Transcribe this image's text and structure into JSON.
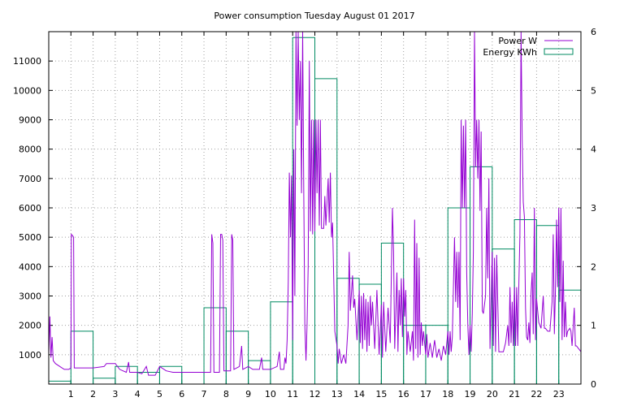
{
  "chart_data": {
    "type": "line",
    "title": "Power consumption Tuesday August 01 2017",
    "xlabel": "",
    "ylabel": "",
    "xlim": [
      0,
      24
    ],
    "ylim": [
      0,
      12000
    ],
    "y2lim": [
      0,
      6
    ],
    "x_ticks": [
      1,
      2,
      3,
      4,
      5,
      6,
      7,
      8,
      9,
      10,
      11,
      12,
      13,
      14,
      15,
      16,
      17,
      18,
      19,
      20,
      21,
      22,
      23
    ],
    "y_ticks": [
      1000,
      2000,
      3000,
      4000,
      5000,
      6000,
      7000,
      8000,
      9000,
      10000,
      11000
    ],
    "y2_ticks": [
      0,
      1,
      2,
      3,
      4,
      5,
      6
    ],
    "grid": true,
    "legend": "top-right",
    "series": [
      {
        "name": "Power W",
        "axis": "y",
        "style": "line",
        "color": "#9400d3",
        "points": [
          [
            0.0,
            1000
          ],
          [
            0.05,
            2300
          ],
          [
            0.1,
            900
          ],
          [
            0.15,
            1600
          ],
          [
            0.2,
            800
          ],
          [
            0.3,
            700
          ],
          [
            0.5,
            600
          ],
          [
            0.7,
            500
          ],
          [
            0.9,
            500
          ],
          [
            1.0,
            550
          ],
          [
            1.02,
            5100
          ],
          [
            1.08,
            5050
          ],
          [
            1.12,
            5000
          ],
          [
            1.15,
            550
          ],
          [
            1.5,
            550
          ],
          [
            2.0,
            550
          ],
          [
            2.5,
            600
          ],
          [
            2.6,
            700
          ],
          [
            3.0,
            700
          ],
          [
            3.2,
            500
          ],
          [
            3.5,
            400
          ],
          [
            3.6,
            750
          ],
          [
            3.65,
            400
          ],
          [
            4.0,
            400
          ],
          [
            4.2,
            350
          ],
          [
            4.4,
            600
          ],
          [
            4.5,
            300
          ],
          [
            4.8,
            300
          ],
          [
            5.0,
            600
          ],
          [
            5.3,
            450
          ],
          [
            5.6,
            400
          ],
          [
            6.0,
            400
          ],
          [
            6.5,
            400
          ],
          [
            7.0,
            400
          ],
          [
            7.3,
            400
          ],
          [
            7.35,
            5100
          ],
          [
            7.4,
            4800
          ],
          [
            7.45,
            400
          ],
          [
            7.7,
            400
          ],
          [
            7.75,
            5100
          ],
          [
            7.8,
            5100
          ],
          [
            7.85,
            4900
          ],
          [
            7.9,
            450
          ],
          [
            8.2,
            450
          ],
          [
            8.25,
            5100
          ],
          [
            8.3,
            4900
          ],
          [
            8.35,
            500
          ],
          [
            8.6,
            600
          ],
          [
            8.7,
            1300
          ],
          [
            8.75,
            500
          ],
          [
            9.0,
            600
          ],
          [
            9.2,
            500
          ],
          [
            9.5,
            500
          ],
          [
            9.6,
            900
          ],
          [
            9.65,
            500
          ],
          [
            10.0,
            500
          ],
          [
            10.3,
            600
          ],
          [
            10.4,
            1100
          ],
          [
            10.45,
            500
          ],
          [
            10.6,
            500
          ],
          [
            10.65,
            900
          ],
          [
            10.7,
            700
          ],
          [
            10.75,
            1500
          ],
          [
            10.8,
            3500
          ],
          [
            10.85,
            7200
          ],
          [
            10.9,
            5000
          ],
          [
            10.95,
            7100
          ],
          [
            11.0,
            1500
          ],
          [
            11.05,
            8000
          ],
          [
            11.1,
            3000
          ],
          [
            11.15,
            12000
          ],
          [
            11.2,
            8800
          ],
          [
            11.25,
            12000
          ],
          [
            11.3,
            9000
          ],
          [
            11.35,
            11000
          ],
          [
            11.4,
            6500
          ],
          [
            11.45,
            12000
          ],
          [
            11.5,
            6400
          ],
          [
            11.55,
            2000
          ],
          [
            11.6,
            800
          ],
          [
            11.65,
            2000
          ],
          [
            11.7,
            4000
          ],
          [
            11.75,
            11000
          ],
          [
            11.8,
            5200
          ],
          [
            11.85,
            9000
          ],
          [
            11.9,
            5100
          ],
          [
            11.95,
            9000
          ],
          [
            12.0,
            5200
          ],
          [
            12.05,
            9000
          ],
          [
            12.1,
            6500
          ],
          [
            12.15,
            9000
          ],
          [
            12.2,
            5400
          ],
          [
            12.25,
            9000
          ],
          [
            12.3,
            5300
          ],
          [
            12.4,
            5300
          ],
          [
            12.45,
            6400
          ],
          [
            12.5,
            5400
          ],
          [
            12.6,
            7000
          ],
          [
            12.65,
            5500
          ],
          [
            12.7,
            7200
          ],
          [
            12.75,
            5000
          ],
          [
            12.8,
            5500
          ],
          [
            12.9,
            1800
          ],
          [
            13.0,
            1300
          ],
          [
            13.05,
            700
          ],
          [
            13.1,
            1200
          ],
          [
            13.2,
            700
          ],
          [
            13.3,
            1000
          ],
          [
            13.4,
            700
          ],
          [
            13.5,
            2000
          ],
          [
            13.55,
            4500
          ],
          [
            13.6,
            2500
          ],
          [
            13.7,
            3700
          ],
          [
            13.75,
            2600
          ],
          [
            13.8,
            2900
          ],
          [
            13.9,
            1500
          ],
          [
            14.0,
            3200
          ],
          [
            14.05,
            1400
          ],
          [
            14.1,
            3000
          ],
          [
            14.15,
            1200
          ],
          [
            14.2,
            3100
          ],
          [
            14.25,
            1500
          ],
          [
            14.3,
            2900
          ],
          [
            14.35,
            1100
          ],
          [
            14.4,
            2800
          ],
          [
            14.45,
            1300
          ],
          [
            14.5,
            3000
          ],
          [
            14.55,
            2000
          ],
          [
            14.6,
            2800
          ],
          [
            14.7,
            1200
          ],
          [
            14.8,
            3200
          ],
          [
            14.9,
            1000
          ],
          [
            15.0,
            2700
          ],
          [
            15.05,
            900
          ],
          [
            15.1,
            2800
          ],
          [
            15.2,
            1100
          ],
          [
            15.3,
            2600
          ],
          [
            15.4,
            1400
          ],
          [
            15.5,
            6000
          ],
          [
            15.55,
            4500
          ],
          [
            15.6,
            1200
          ],
          [
            15.7,
            3800
          ],
          [
            15.75,
            1100
          ],
          [
            15.8,
            3200
          ],
          [
            15.85,
            2000
          ],
          [
            15.9,
            3600
          ],
          [
            15.95,
            1600
          ],
          [
            16.0,
            3600
          ],
          [
            16.05,
            2300
          ],
          [
            16.1,
            3200
          ],
          [
            16.15,
            1000
          ],
          [
            16.2,
            1800
          ],
          [
            16.3,
            1100
          ],
          [
            16.4,
            1800
          ],
          [
            16.45,
            800
          ],
          [
            16.5,
            5600
          ],
          [
            16.55,
            1200
          ],
          [
            16.6,
            4800
          ],
          [
            16.65,
            900
          ],
          [
            16.7,
            4300
          ],
          [
            16.75,
            1000
          ],
          [
            16.8,
            2100
          ],
          [
            16.85,
            1300
          ],
          [
            16.9,
            1800
          ],
          [
            17.0,
            1000
          ],
          [
            17.05,
            1700
          ],
          [
            17.1,
            900
          ],
          [
            17.2,
            1400
          ],
          [
            17.3,
            900
          ],
          [
            17.4,
            1500
          ],
          [
            17.5,
            900
          ],
          [
            17.6,
            1200
          ],
          [
            17.7,
            800
          ],
          [
            17.8,
            1300
          ],
          [
            17.9,
            1000
          ],
          [
            18.0,
            1800
          ],
          [
            18.05,
            1000
          ],
          [
            18.1,
            1800
          ],
          [
            18.15,
            1100
          ],
          [
            18.2,
            1600
          ],
          [
            18.3,
            5000
          ],
          [
            18.35,
            2800
          ],
          [
            18.4,
            4500
          ],
          [
            18.45,
            2600
          ],
          [
            18.5,
            4500
          ],
          [
            18.55,
            1500
          ],
          [
            18.6,
            9000
          ],
          [
            18.65,
            6000
          ],
          [
            18.7,
            8800
          ],
          [
            18.75,
            6000
          ],
          [
            18.8,
            9000
          ],
          [
            18.85,
            3800
          ],
          [
            18.9,
            2000
          ],
          [
            18.95,
            1000
          ],
          [
            19.0,
            2000
          ],
          [
            19.05,
            1100
          ],
          [
            19.1,
            2400
          ],
          [
            19.15,
            4500
          ],
          [
            19.2,
            12000
          ],
          [
            19.25,
            7400
          ],
          [
            19.3,
            9000
          ],
          [
            19.35,
            7000
          ],
          [
            19.4,
            9000
          ],
          [
            19.45,
            5900
          ],
          [
            19.5,
            8600
          ],
          [
            19.55,
            2500
          ],
          [
            19.6,
            2400
          ],
          [
            19.7,
            3000
          ],
          [
            19.75,
            6000
          ],
          [
            19.8,
            3600
          ],
          [
            19.85,
            7000
          ],
          [
            19.9,
            1200
          ],
          [
            20.0,
            4500
          ],
          [
            20.05,
            1300
          ],
          [
            20.1,
            4300
          ],
          [
            20.15,
            1100
          ],
          [
            20.2,
            4400
          ],
          [
            20.3,
            1100
          ],
          [
            20.5,
            1100
          ],
          [
            20.6,
            1400
          ],
          [
            20.7,
            2000
          ],
          [
            20.75,
            1300
          ],
          [
            20.8,
            3300
          ],
          [
            20.85,
            1400
          ],
          [
            20.9,
            2800
          ],
          [
            20.95,
            1300
          ],
          [
            21.0,
            3300
          ],
          [
            21.05,
            1300
          ],
          [
            21.1,
            3300
          ],
          [
            21.15,
            1300
          ],
          [
            21.2,
            3400
          ],
          [
            21.25,
            5100
          ],
          [
            21.3,
            12000
          ],
          [
            21.35,
            8300
          ],
          [
            21.4,
            6200
          ],
          [
            21.45,
            5700
          ],
          [
            21.5,
            2600
          ],
          [
            21.55,
            1600
          ],
          [
            21.6,
            1500
          ],
          [
            21.65,
            2100
          ],
          [
            21.7,
            1400
          ],
          [
            21.75,
            3100
          ],
          [
            21.8,
            3800
          ],
          [
            21.85,
            1700
          ],
          [
            21.9,
            6000
          ],
          [
            21.95,
            1500
          ],
          [
            22.0,
            2900
          ],
          [
            22.1,
            2100
          ],
          [
            22.2,
            1900
          ],
          [
            22.3,
            3000
          ],
          [
            22.35,
            1900
          ],
          [
            22.4,
            1900
          ],
          [
            22.5,
            1800
          ],
          [
            22.6,
            1800
          ],
          [
            22.7,
            2800
          ],
          [
            22.75,
            5100
          ],
          [
            22.8,
            1700
          ],
          [
            22.85,
            3200
          ],
          [
            22.9,
            5600
          ],
          [
            22.95,
            3300
          ],
          [
            23.0,
            6000
          ],
          [
            23.05,
            2800
          ],
          [
            23.1,
            6000
          ],
          [
            23.15,
            1500
          ],
          [
            23.2,
            4200
          ],
          [
            23.25,
            1600
          ],
          [
            23.3,
            2800
          ],
          [
            23.35,
            1600
          ],
          [
            23.4,
            1800
          ],
          [
            23.5,
            1900
          ],
          [
            23.55,
            1800
          ],
          [
            23.6,
            1300
          ],
          [
            23.7,
            2600
          ],
          [
            23.75,
            1300
          ],
          [
            23.8,
            1300
          ],
          [
            23.9,
            1200
          ],
          [
            24.0,
            1100
          ]
        ]
      },
      {
        "name": "Energy KWh",
        "axis": "y2",
        "style": "steps",
        "color": "#008b62",
        "hours": [
          0,
          1,
          2,
          3,
          4,
          5,
          6,
          7,
          8,
          9,
          10,
          11,
          12,
          13,
          14,
          15,
          16,
          17,
          18,
          19,
          20,
          21,
          22,
          23
        ],
        "values": [
          0.05,
          0.9,
          0.1,
          0.3,
          0.2,
          0.3,
          0.2,
          1.3,
          0.9,
          0.4,
          1.4,
          5.9,
          5.2,
          1.8,
          1.7,
          2.4,
          1.0,
          1.0,
          3.0,
          3.7,
          2.3,
          2.8,
          2.7,
          1.6
        ]
      }
    ]
  }
}
